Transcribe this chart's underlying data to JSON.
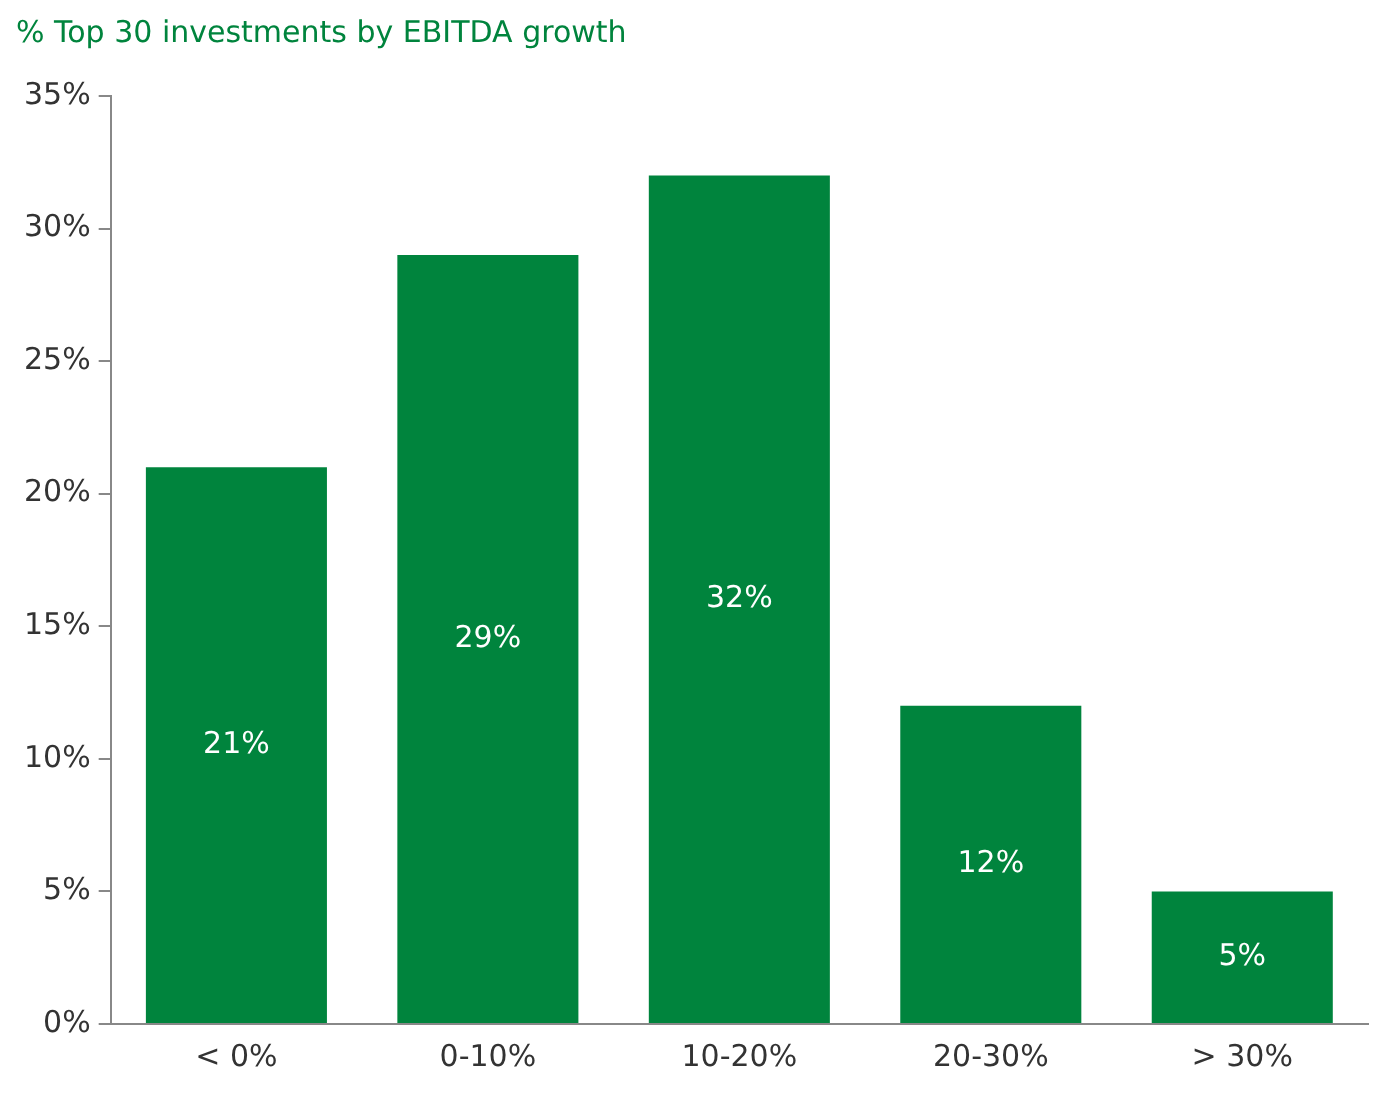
{
  "chart_data": {
    "type": "bar",
    "title": "% Top 30 investments by EBITDA growth",
    "categories": [
      "< 0%",
      "0-10%",
      "10-20%",
      "20-30%",
      "> 30%"
    ],
    "values": [
      21,
      29,
      32,
      12,
      5
    ],
    "value_labels": [
      "21%",
      "29%",
      "32%",
      "12%",
      "5%"
    ],
    "color": "#00843d",
    "ylim": [
      0,
      35
    ],
    "yticks": [
      {
        "value": 0,
        "label": "0%"
      },
      {
        "value": 5,
        "label": "5%"
      },
      {
        "value": 10,
        "label": "10%"
      },
      {
        "value": 15,
        "label": "15%"
      },
      {
        "value": 20,
        "label": "20%"
      },
      {
        "value": 25,
        "label": "25%"
      },
      {
        "value": 30,
        "label": "30%"
      },
      {
        "value": 35,
        "label": "35%"
      }
    ],
    "grid": false,
    "legend": false
  }
}
